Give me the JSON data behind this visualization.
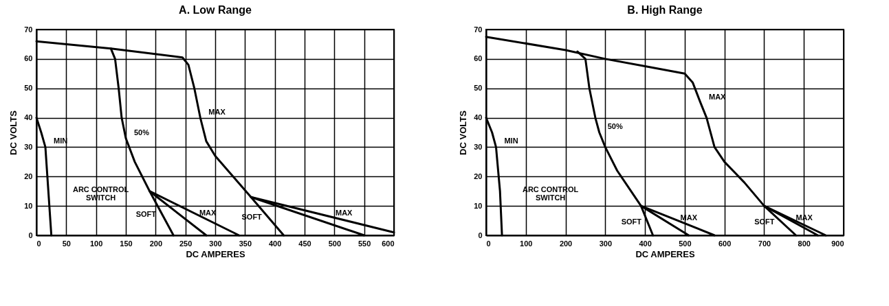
{
  "chart_data": [
    {
      "type": "line",
      "title": "A.  Low Range",
      "xlabel": "DC AMPERES",
      "ylabel": "DC VOLTS",
      "xlim": [
        0,
        600
      ],
      "ylim": [
        0,
        70
      ],
      "xticks": [
        0,
        50,
        100,
        150,
        200,
        250,
        300,
        350,
        400,
        450,
        500,
        550,
        600
      ],
      "yticks": [
        0,
        10,
        20,
        30,
        40,
        50,
        60,
        70
      ],
      "grid": true,
      "series": [
        {
          "name": "MIN",
          "color": "#000000",
          "x": [
            0,
            8,
            15,
            20,
            25
          ],
          "values": [
            40,
            35,
            30,
            15,
            0
          ]
        },
        {
          "name": "MAX",
          "color": "#000000",
          "x": [
            0,
            125,
            245,
            255,
            265,
            275,
            285,
            300,
            330,
            360,
            550
          ],
          "values": [
            66,
            63.5,
            60.5,
            58,
            50,
            40,
            32,
            27,
            20,
            13,
            0
          ]
        },
        {
          "name": "50%",
          "color": "#000000",
          "x": [
            125,
            132,
            138,
            143,
            150,
            165,
            190,
            285
          ],
          "values": [
            63.5,
            60,
            50,
            40,
            33,
            25,
            15,
            0
          ]
        },
        {
          "name": "SOFT",
          "color": "#000000",
          "x": [
            190,
            230
          ],
          "values": [
            15,
            0
          ]
        },
        {
          "name": "MAX",
          "color": "#000000",
          "x": [
            190,
            340
          ],
          "values": [
            15,
            0
          ]
        },
        {
          "name": "SOFT",
          "color": "#000000",
          "x": [
            360,
            415
          ],
          "values": [
            13,
            0
          ]
        },
        {
          "name": "MAX",
          "color": "#000000",
          "x": [
            360,
            600
          ],
          "values": [
            13,
            1
          ]
        }
      ],
      "annotations": [
        "ARC CONTROL SWITCH"
      ]
    },
    {
      "type": "line",
      "title": "B.  High Range",
      "xlabel": "DC AMPERES",
      "ylabel": "DC VOLTS",
      "xlim": [
        0,
        900
      ],
      "ylim": [
        0,
        70
      ],
      "xticks": [
        0,
        100,
        200,
        300,
        400,
        500,
        600,
        700,
        800,
        900
      ],
      "yticks": [
        0,
        10,
        20,
        30,
        40,
        50,
        60,
        70
      ],
      "grid": true,
      "series": [
        {
          "name": "MIN",
          "color": "#000000",
          "x": [
            0,
            15,
            25,
            35,
            40
          ],
          "values": [
            40,
            35,
            30,
            15,
            0
          ]
        },
        {
          "name": "MAX",
          "color": "#000000",
          "x": [
            0,
            200,
            300,
            400,
            500,
            520,
            540,
            555,
            575,
            600,
            650,
            700,
            835
          ],
          "values": [
            67.5,
            63,
            60,
            57.5,
            55,
            52,
            45,
            40,
            30,
            25,
            18,
            10,
            0
          ]
        },
        {
          "name": "50%",
          "color": "#000000",
          "x": [
            230,
            250,
            260,
            275,
            285,
            300,
            330,
            390,
            510
          ],
          "values": [
            62.5,
            60,
            50,
            40,
            35,
            30,
            22,
            10,
            0
          ]
        },
        {
          "name": "SOFT",
          "color": "#000000",
          "x": [
            390,
            420
          ],
          "values": [
            10,
            0
          ]
        },
        {
          "name": "MAX",
          "color": "#000000",
          "x": [
            390,
            575
          ],
          "values": [
            10,
            0
          ]
        },
        {
          "name": "SOFT",
          "color": "#000000",
          "x": [
            700,
            780
          ],
          "values": [
            10,
            0
          ]
        },
        {
          "name": "MAX",
          "color": "#000000",
          "x": [
            700,
            855
          ],
          "values": [
            10,
            0
          ]
        }
      ],
      "annotations": [
        "ARC CONTROL SWITCH"
      ]
    }
  ]
}
